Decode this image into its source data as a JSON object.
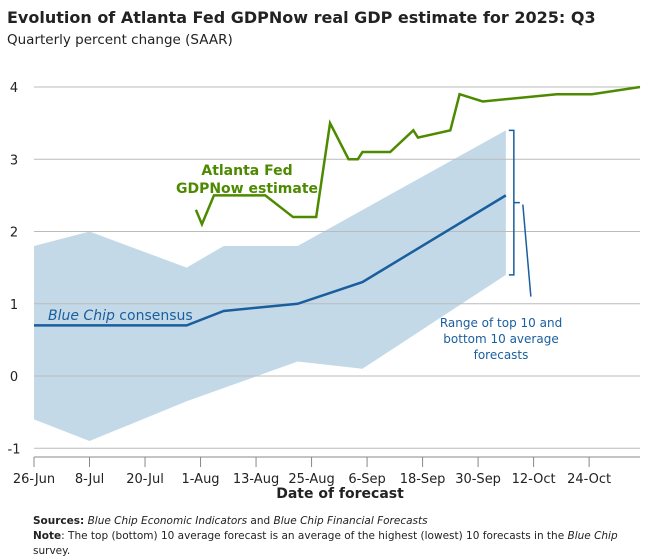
{
  "chart_data": {
    "type": "line",
    "title": "Evolution of Atlanta Fed GDPNow real GDP estimate for 2025: Q3",
    "subtitle": "Quarterly percent change (SAAR)",
    "xlabel": "Date of forecast",
    "ylabel": "",
    "ylim": [
      -1,
      4
    ],
    "yticks": [
      "4",
      "3",
      "2",
      "1",
      "0",
      "-1"
    ],
    "xticks": [
      "26-Jun",
      "8-Jul",
      "20-Jul",
      "1-Aug",
      "13-Aug",
      "25-Aug",
      "6-Sep",
      "18-Sep",
      "30-Sep",
      "12-Oct",
      "24-Oct"
    ],
    "x_unit": "days since 26-Jun",
    "xlim": [
      0,
      131
    ],
    "series": [
      {
        "name": "Atlanta Fed GDPNow estimate",
        "color": "#4d8a00",
        "points": [
          [
            35,
            2.3
          ],
          [
            36.3,
            2.1
          ],
          [
            38.9,
            2.5
          ],
          [
            50,
            2.5
          ],
          [
            56,
            2.2
          ],
          [
            61,
            2.2
          ],
          [
            64,
            3.5
          ],
          [
            68,
            3.0
          ],
          [
            70,
            3.0
          ],
          [
            71,
            3.1
          ],
          [
            77,
            3.1
          ],
          [
            82,
            3.4
          ],
          [
            83,
            3.3
          ],
          [
            90,
            3.4
          ],
          [
            92,
            3.9
          ],
          [
            97,
            3.8
          ],
          [
            113,
            3.9
          ],
          [
            120.6,
            3.9
          ],
          [
            131,
            4.0
          ]
        ]
      },
      {
        "name": "Blue Chip consensus",
        "color": "#1a5e9e",
        "points": [
          [
            0,
            0.7
          ],
          [
            33,
            0.7
          ],
          [
            41,
            0.9
          ],
          [
            57,
            1.0
          ],
          [
            71,
            1.3
          ],
          [
            102,
            2.5
          ]
        ]
      }
    ],
    "band": {
      "name": "Range of top 10 and bottom 10 average forecasts",
      "color": "#c3d9e8",
      "upper": [
        [
          0,
          1.8
        ],
        [
          12,
          2.0
        ],
        [
          33,
          1.5
        ],
        [
          41,
          1.8
        ],
        [
          57,
          1.8
        ],
        [
          102,
          3.4
        ]
      ],
      "lower": [
        [
          0,
          -0.6
        ],
        [
          12,
          -0.9
        ],
        [
          33,
          -0.35
        ],
        [
          57,
          0.2
        ],
        [
          71,
          0.1
        ],
        [
          102,
          1.4
        ]
      ]
    },
    "annotations": {
      "gdpnow": [
        "Atlanta Fed",
        "GDPNow estimate"
      ],
      "consensus_italic": "Blue Chip",
      "consensus_rest": " consensus",
      "band": [
        "Range of top 10 and",
        "bottom 10 average",
        "forecasts"
      ]
    },
    "grid": true
  },
  "notes": {
    "sources_label": "Sources:",
    "sources_1": "Blue Chip Economic Indicators",
    "sources_and": " and ",
    "sources_2": "Blue Chip Financial Forecasts",
    "note_label": "Note",
    "note_text_1": ": The top (bottom) 10 average forecast is an average of the highest (lowest) 10 forecasts in the ",
    "note_italic": "Blue Chip",
    "note_text_2": " survey."
  }
}
